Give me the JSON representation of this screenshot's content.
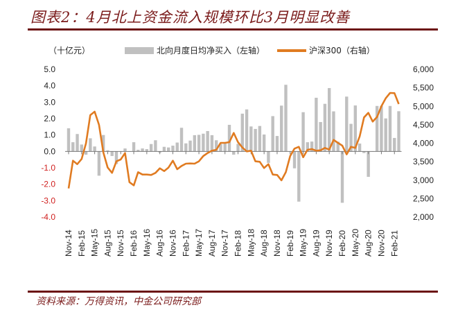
{
  "title": "图表2：4月北上资金流入规模环比3月明显改善",
  "source": "资料来源：万得资讯，中金公司研究部",
  "colors": {
    "bar": "#c0c0c0",
    "line": "#e07b21",
    "accent": "#6b1010",
    "negative_tick": "#d0201f"
  },
  "chart_data": {
    "type": "bar+line",
    "unit_label": "（十亿元）",
    "legend_placement": "top",
    "left_axis": {
      "ylim": [
        -4,
        5
      ],
      "ticks": [
        "5.0",
        "4.0",
        "3.0",
        "2.0",
        "1.0",
        "0.0",
        "-1.0",
        "-2.0",
        "-3.0",
        "-4.0"
      ],
      "tick_values": [
        5,
        4,
        3,
        2,
        1,
        0,
        -1,
        -2,
        -3,
        -4
      ]
    },
    "right_axis": {
      "ylim": [
        2000,
        6000
      ],
      "ticks": [
        "6,000",
        "5,500",
        "5,000",
        "4,500",
        "4,000",
        "3,500",
        "3,000",
        "2,500",
        "2,000"
      ],
      "tick_values": [
        6000,
        5500,
        5000,
        4500,
        4000,
        3500,
        3000,
        2500,
        2000
      ]
    },
    "start_month": "Nov-14",
    "x_tick_labels": [
      "Nov-14",
      "Feb-15",
      "May-15",
      "Aug-15",
      "Nov-15",
      "Feb-16",
      "May-16",
      "Aug-16",
      "Nov-16",
      "Feb-17",
      "May-17",
      "Aug-17",
      "Nov-17",
      "Feb-18",
      "May-18",
      "Aug-18",
      "Nov-18",
      "Feb-19",
      "May-19",
      "Aug-19",
      "Nov-19",
      "Feb-20",
      "May-20",
      "Aug-20",
      "Nov-20",
      "Feb-21"
    ],
    "series": [
      {
        "name": "北向月度日均净买入（左轴）",
        "type": "bar",
        "axis": "left",
        "values": [
          1.41,
          0.56,
          1.06,
          0.42,
          -0.2,
          0.8,
          0.3,
          -1.48,
          1.0,
          0.07,
          -0.28,
          -0.77,
          0.0,
          0.18,
          0.0,
          0.56,
          0.1,
          0.18,
          0.14,
          0.45,
          0.68,
          -0.07,
          0.28,
          0.24,
          0.35,
          0.54,
          1.44,
          0.49,
          0.66,
          0.99,
          1.01,
          1.08,
          1.24,
          0.99,
          0.68,
          0.46,
          0.49,
          1.62,
          -0.2,
          0.46,
          2.3,
          2.56,
          1.52,
          1.37,
          1.55,
          1.03,
          -0.7,
          2.15,
          0.94,
          2.79,
          4.06,
          0.0,
          -1.03,
          -3.06,
          2.39,
          0.56,
          0.6,
          3.27,
          1.79,
          2.9,
          3.86,
          2.44,
          0.59,
          -3.13,
          3.34,
          1.68,
          2.8,
          0.48,
          -0.1,
          -1.55,
          0.0,
          2.77,
          2.77,
          2.01,
          2.77,
          0.82,
          2.45
        ]
      },
      {
        "name": "沪深300（右轴）",
        "type": "line",
        "axis": "right",
        "values": [
          2776,
          3527,
          3433,
          3571,
          3997,
          4761,
          4854,
          4498,
          3746,
          3340,
          3196,
          3509,
          3559,
          3734,
          2944,
          2858,
          3215,
          3152,
          3152,
          3140,
          3196,
          3321,
          3246,
          3340,
          3527,
          3296,
          3384,
          3446,
          3452,
          3446,
          3509,
          3653,
          3734,
          3797,
          3822,
          4009,
          4009,
          4028,
          4278,
          4028,
          3884,
          3778,
          3797,
          3509,
          3496,
          3327,
          3433,
          3152,
          3140,
          2995,
          3215,
          3653,
          3853,
          3903,
          3621,
          3822,
          3840,
          3797,
          3809,
          3872,
          3828,
          4091,
          4009,
          3934,
          3697,
          3903,
          3872,
          4184,
          4698,
          4823,
          4585,
          4710,
          4999,
          5217,
          5361,
          5355,
          5061
        ]
      }
    ]
  }
}
